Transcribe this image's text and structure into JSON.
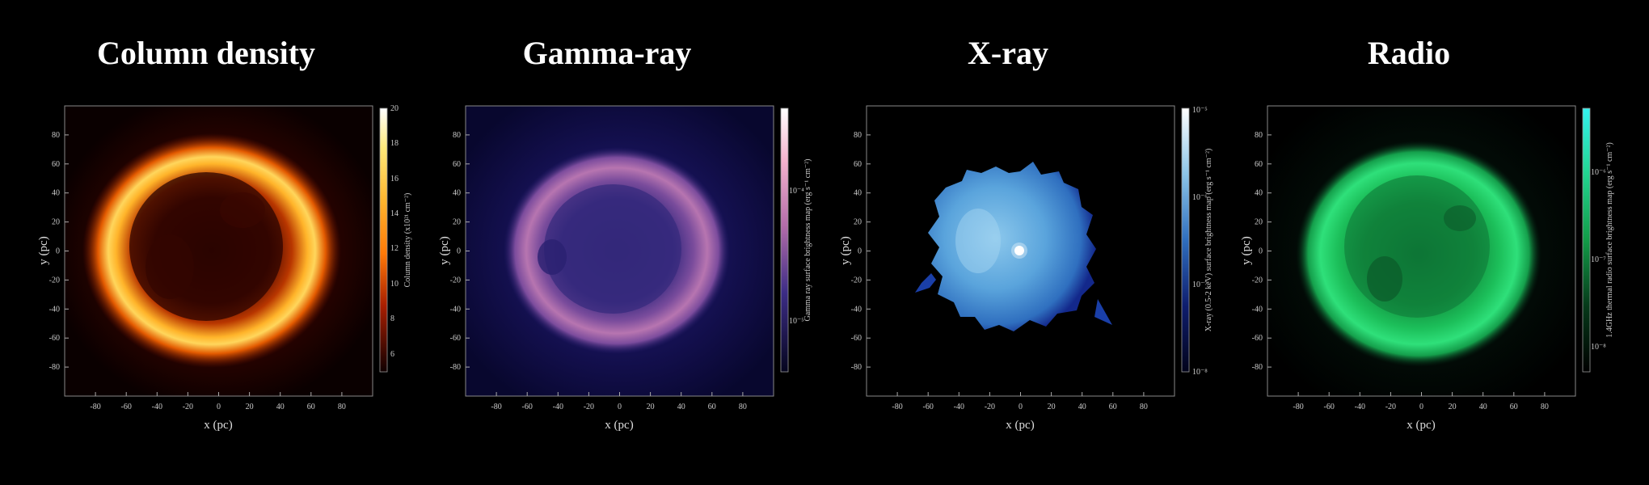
{
  "panels": [
    {
      "title": "Column density",
      "colorbar_label": "Column density (x10²¹ cm⁻²)",
      "colorbar_ticks": [
        "20",
        "18",
        "16",
        "14",
        "12",
        "10",
        "8",
        "6"
      ],
      "colormap": [
        "#ffffff",
        "#ffe97a",
        "#ffb52e",
        "#ff7a08",
        "#d23b00",
        "#7a0e00",
        "#2a0000",
        "#000000"
      ]
    },
    {
      "title": "Gamma-ray",
      "colorbar_label": "Gamma ray surface brightness map (erg s⁻¹ cm⁻²)",
      "colorbar_ticks": [
        "10⁻⁴",
        "10⁻⁵"
      ],
      "colormap": [
        "#ffffff",
        "#f6b4cf",
        "#c77ab7",
        "#7b4b9e",
        "#2a1f74",
        "#0b0a48",
        "#000000"
      ]
    },
    {
      "title": "X-ray",
      "colorbar_label": "X-ray (0.5-2 keV) surface brightness map (erg s⁻¹ cm⁻²)",
      "colorbar_ticks": [
        "10⁻⁵",
        "10⁻⁶",
        "10⁻⁷",
        "10⁻⁸"
      ],
      "colormap": [
        "#ffffff",
        "#bfe6f7",
        "#6db2e0",
        "#2f6fbf",
        "#13288b",
        "#050a3a",
        "#000000"
      ]
    },
    {
      "title": "Radio",
      "colorbar_label": "1.4GHz thermal radio surface brightness map (erg s⁻¹ cm⁻²)",
      "colorbar_ticks": [
        "10⁻⁶",
        "10⁻⁷",
        "10⁻⁸"
      ],
      "colormap": [
        "#2ff0f0",
        "#22e0a0",
        "#1fbf5a",
        "#0e7f3a",
        "#053d1c",
        "#000000"
      ]
    }
  ],
  "axes": {
    "xlabel": "x (pc)",
    "ylabel": "y (pc)",
    "ticks": [
      "-80",
      "-60",
      "-40",
      "-20",
      "0",
      "20",
      "40",
      "60",
      "80"
    ],
    "range": [
      -100,
      100
    ]
  }
}
